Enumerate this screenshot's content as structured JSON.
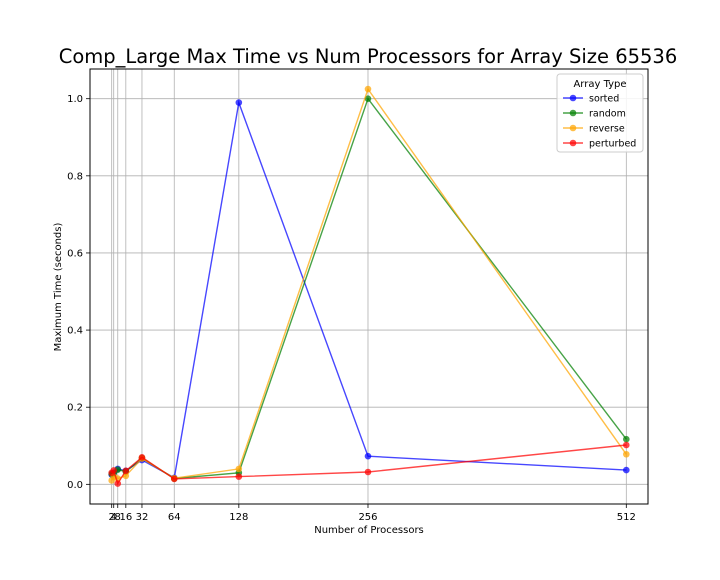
{
  "chart_data": {
    "type": "line",
    "title": "Comp_Large Max Time vs Num Processors for Array Size 65536",
    "xlabel": "Number of Processors",
    "ylabel": "Maximum Time (seconds)",
    "x": [
      2,
      4,
      8,
      16,
      32,
      64,
      128,
      256,
      512
    ],
    "xticks": [
      2,
      4,
      8,
      16,
      32,
      64,
      128,
      256,
      512
    ],
    "xtick_labels": [
      "2",
      "4",
      "8",
      "16",
      "32",
      "64",
      "128",
      "256",
      "512"
    ],
    "xlim": [
      -19.5,
      533.5
    ],
    "yticks": [
      0.0,
      0.2,
      0.4,
      0.6,
      0.8,
      1.0
    ],
    "ytick_labels": [
      "0.0",
      "0.2",
      "0.4",
      "0.6",
      "0.8",
      "1.0"
    ],
    "ylim": [
      -0.051,
      1.077
    ],
    "grid": true,
    "legend_title": "Array Type",
    "legend_position": "upper right",
    "series": [
      {
        "name": "sorted",
        "color": "#0000ff",
        "values": [
          0.025,
          0.03,
          0.04,
          0.035,
          0.063,
          0.017,
          0.99,
          0.073,
          0.037
        ]
      },
      {
        "name": "random",
        "color": "#008000",
        "values": [
          0.027,
          0.028,
          0.038,
          0.033,
          0.068,
          0.015,
          0.03,
          1.0,
          0.117
        ]
      },
      {
        "name": "reverse",
        "color": "#ffa500",
        "values": [
          0.01,
          0.02,
          0.015,
          0.022,
          0.067,
          0.016,
          0.04,
          1.025,
          0.078
        ]
      },
      {
        "name": "perturbed",
        "color": "#ff0000",
        "values": [
          0.03,
          0.036,
          0.002,
          0.035,
          0.07,
          0.014,
          0.02,
          0.032,
          0.102
        ]
      }
    ]
  }
}
